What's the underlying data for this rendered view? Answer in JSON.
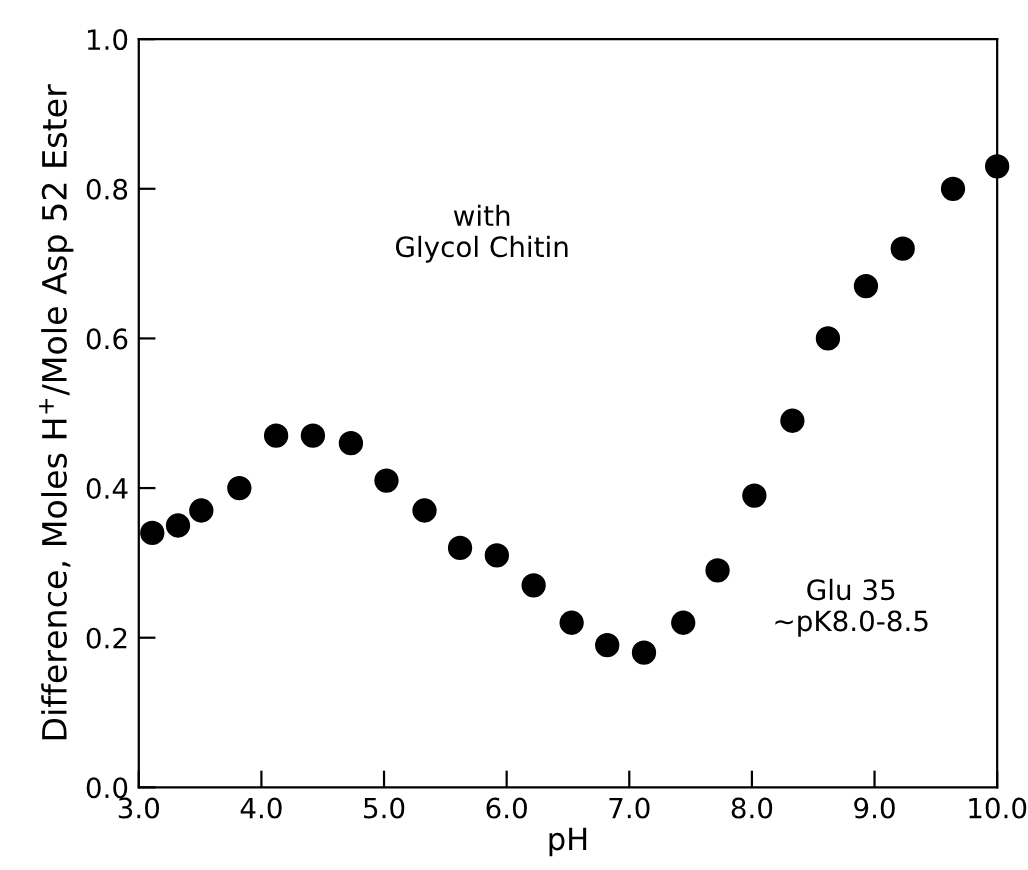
{
  "chart_data": {
    "type": "scatter",
    "xlabel": "pH",
    "ylabel": "Difference, Moles H$^{+}$/Mole Asp 52 Ester",
    "annotations": [
      "with\nGlycol Chitin",
      "Glu 35\n~pK8.0-8.5"
    ],
    "x": [
      3.11,
      3.32,
      3.51,
      3.82,
      4.12,
      4.42,
      4.73,
      5.02,
      5.33,
      5.62,
      5.92,
      6.22,
      6.53,
      6.82,
      7.12,
      7.44,
      7.72,
      8.02,
      8.33,
      8.62,
      8.93,
      9.23,
      9.64,
      10.0
    ],
    "series": [
      {
        "color": "#000000",
        "values": [
          0.34,
          0.35,
          0.37,
          0.4,
          0.47,
          0.47,
          0.46,
          0.41,
          0.37,
          0.32,
          0.31,
          0.27,
          0.22,
          0.19,
          0.18,
          0.22,
          0.29,
          0.39,
          0.49,
          0.6,
          0.67,
          0.72,
          0.8,
          0.83
        ]
      }
    ],
    "xlim": [
      3.0,
      10.0
    ],
    "ylim": [
      0.0,
      1.0
    ],
    "xticks": [
      {
        "value": 3,
        "label": "3.0"
      },
      {
        "value": 4,
        "label": "4.0"
      },
      {
        "value": 5,
        "label": "5.0"
      },
      {
        "value": 6,
        "label": "6.0"
      },
      {
        "value": 7,
        "label": "7.0"
      },
      {
        "value": 8,
        "label": "8.0"
      },
      {
        "value": 9,
        "label": "9.0"
      },
      {
        "value": 10,
        "label": "10.0"
      }
    ],
    "yticks": [
      {
        "value": 0,
        "label": "0.0"
      },
      0.2,
      0.4,
      0.6,
      0.8,
      {
        "value": 1,
        "label": "1.0"
      }
    ],
    "marker": "circle",
    "grid": false,
    "legend": false
  }
}
